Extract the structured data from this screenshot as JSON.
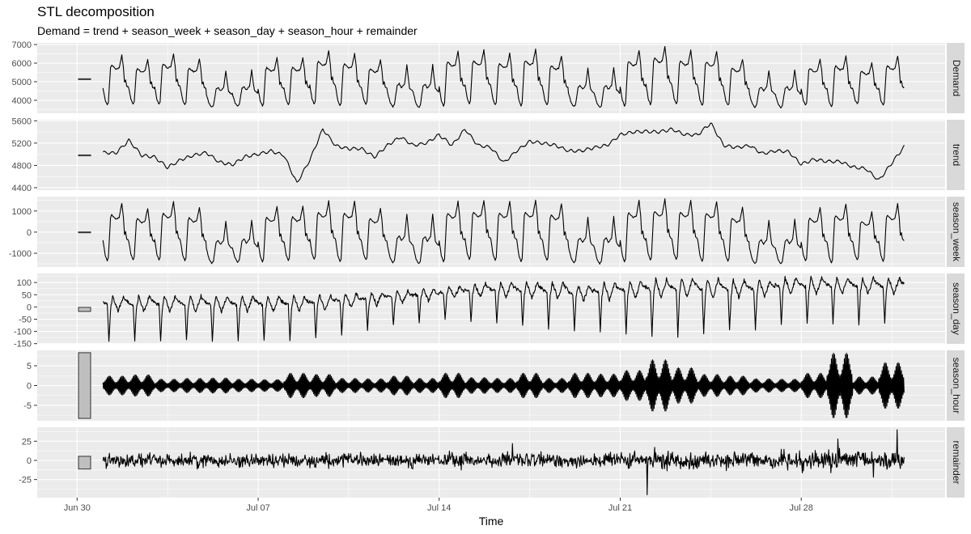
{
  "title": "STL decomposition",
  "subtitle": "Demand = trend + season_week + season_day + season_hour + remainder",
  "chart_data": {
    "type": "line",
    "layout": "faceted vertical panels, free y scales, strip labels on right",
    "grid": true,
    "colors": {
      "panel": "#ebebeb",
      "strip": "#d9d9d9",
      "line": "#000000",
      "scale_bar": "#bfbfbf"
    },
    "xlabel": "Time",
    "x_axis": {
      "tick_labels": [
        "Jun 30",
        "Jul 07",
        "Jul 14",
        "Jul 21",
        "Jul 28"
      ],
      "data_start": "Jul 01 00:00",
      "data_end": "Jul 31 23:30",
      "interval": "30 min",
      "weekend_days": [
        "Jul 05",
        "Jul 06",
        "Jul 12",
        "Jul 13",
        "Jul 19",
        "Jul 20",
        "Jul 26",
        "Jul 27"
      ]
    },
    "scale_bar_range": 16.6,
    "panels": [
      {
        "name": "Demand",
        "ylim": [
          3300,
          7090
        ],
        "ticks": [
          4000,
          5000,
          6000,
          7000
        ],
        "scale_bar_center": 5150,
        "daily_peak": [
          6420,
          6175,
          6490,
          6230,
          5560,
          5620,
          6280,
          6280,
          6670,
          6520,
          6170,
          5910,
          5910,
          6650,
          6700,
          6520,
          6740,
          6390,
          5740,
          5780,
          6700,
          6900,
          6700,
          6650,
          6220,
          5610,
          5650,
          6220,
          6390,
          6000,
          6390
        ],
        "daily_min": [
          3750,
          3800,
          3780,
          3760,
          3620,
          3680,
          3700,
          3760,
          3800,
          3700,
          3790,
          3650,
          3600,
          3700,
          3820,
          3760,
          3700,
          3760,
          3650,
          3600,
          3700,
          3780,
          3800,
          3720,
          3740,
          3620,
          3600,
          3740,
          3650,
          3800,
          3720
        ]
      },
      {
        "name": "trend",
        "ylim": [
          4356,
          5619
        ],
        "ticks": [
          4400,
          4800,
          5200,
          5600
        ],
        "scale_bar_center": 4980,
        "half_daily": [
          5030,
          5020,
          5250,
          4980,
          4950,
          4760,
          4900,
          4980,
          5030,
          4860,
          4810,
          4960,
          5000,
          5060,
          4980,
          4480,
          4900,
          5450,
          5150,
          5100,
          5100,
          4950,
          5160,
          5310,
          5160,
          5200,
          5350,
          5160,
          5450,
          5160,
          5120,
          4850,
          5060,
          5230,
          5200,
          5160,
          5060,
          5060,
          5120,
          5160,
          5350,
          5400,
          5410,
          5400,
          5450,
          5350,
          5350,
          5560,
          5160,
          5120,
          5160,
          5010,
          5060,
          5050,
          4820,
          4910,
          4870,
          4870,
          4770,
          4740,
          4530,
          4840
        ]
      },
      {
        "name": "season_week",
        "ylim": [
          -1650,
          1680
        ],
        "ticks": [
          -1000,
          0,
          1000
        ],
        "scale_bar_center": 0,
        "daily_peak": [
          1370,
          1125,
          1440,
          1180,
          510,
          570,
          1230,
          1230,
          1480,
          1470,
          1120,
          860,
          860,
          1460,
          1500,
          1470,
          1520,
          1340,
          690,
          730,
          1500,
          1560,
          1500,
          1460,
          1170,
          560,
          600,
          1170,
          1340,
          950,
          1340
        ],
        "daily_min": [
          -1350,
          -1300,
          -1320,
          -1340,
          -1480,
          -1420,
          -1400,
          -1340,
          -1300,
          -1400,
          -1310,
          -1450,
          -1500,
          -1400,
          -1280,
          -1340,
          -1400,
          -1340,
          -1450,
          -1500,
          -1400,
          -1320,
          -1300,
          -1380,
          -1360,
          -1480,
          -1500,
          -1360,
          -1450,
          -1300,
          -1380
        ]
      },
      {
        "name": "season_day",
        "ylim": [
          -151,
          137
        ],
        "ticks": [
          -150,
          -100,
          -50,
          0,
          50,
          100
        ],
        "scale_bar_center": -10,
        "daily_peak": [
          45,
          45,
          45,
          45,
          45,
          45,
          45,
          45,
          50,
          55,
          60,
          65,
          75,
          85,
          95,
          100,
          100,
          100,
          90,
          100,
          110,
          115,
          120,
          115,
          110,
          110,
          120,
          120,
          120,
          120,
          120
        ],
        "daily_min": [
          -140,
          -140,
          -140,
          -140,
          -140,
          -140,
          -140,
          -135,
          -130,
          -110,
          -90,
          -75,
          -65,
          -55,
          -60,
          -70,
          -80,
          -90,
          -100,
          -105,
          -110,
          -115,
          -118,
          -110,
          -100,
          -90,
          -75,
          -70,
          -70,
          -70,
          -70
        ]
      },
      {
        "name": "season_hour",
        "ylim": [
          -8.9,
          8.9
        ],
        "ticks": [
          -5,
          0,
          5
        ],
        "scale_bar_center": 0,
        "daily_amplitude": [
          2.4,
          2.7,
          1.6,
          1.8,
          1.9,
          1.6,
          1.5,
          3.1,
          2.8,
          1.8,
          1.7,
          2.4,
          1.8,
          3.1,
          2.0,
          1.8,
          3.1,
          1.8,
          3.1,
          2.9,
          3.8,
          6.5,
          4.5,
          2.8,
          2.4,
          1.7,
          1.6,
          3.1,
          8.2,
          2.2,
          5.8
        ]
      },
      {
        "name": "remainder",
        "ylim": [
          -48.6,
          43.3
        ],
        "ticks": [
          -25,
          0,
          25
        ],
        "scale_bar_center": -3,
        "daily_spread": [
          7,
          7,
          6,
          7,
          6,
          7,
          7,
          6,
          7,
          7,
          6,
          7,
          7,
          8,
          7,
          7,
          8,
          7,
          7,
          8,
          8,
          9,
          8,
          8,
          8,
          8,
          9,
          9,
          10,
          9,
          10
        ],
        "spikes": [
          {
            "time": "Jul 22 01:00",
            "value": -45
          },
          {
            "time": "Jul 31 17:00",
            "value": 40
          },
          {
            "time": "Jul 29 10:00",
            "value": 28
          },
          {
            "time": "Jul 16 20:00",
            "value": 22
          },
          {
            "time": "Jul 30 19:00",
            "value": -22
          }
        ]
      }
    ]
  }
}
